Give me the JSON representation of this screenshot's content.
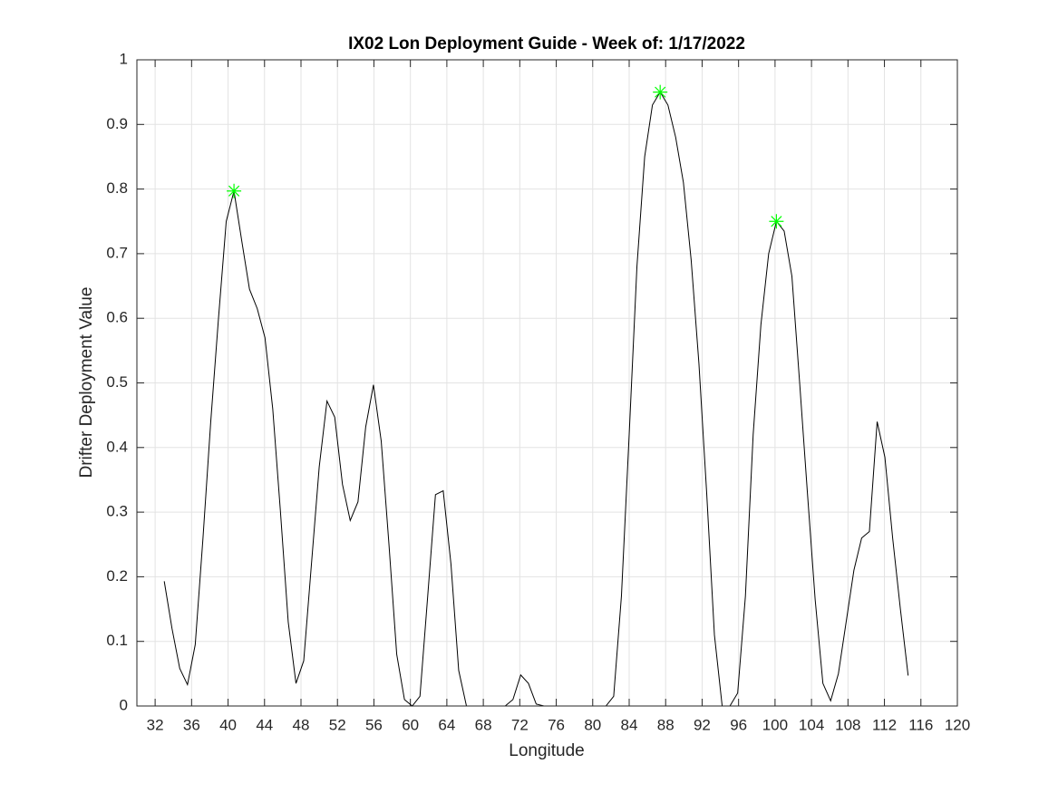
{
  "chart_data": {
    "type": "line",
    "title": "IX02 Lon Deployment Guide - Week of: 1/17/2022",
    "x_label": "Longitude",
    "y_label": "Drifter Deployment Value",
    "x": [
      33,
      33.85,
      34.7,
      35.55,
      36.4,
      37.25,
      38.1,
      38.95,
      39.8,
      40.65,
      41.5,
      42.35,
      43.2,
      44.05,
      44.9,
      45.75,
      46.6,
      47.45,
      48.3,
      49.15,
      50,
      50.85,
      51.7,
      52.55,
      53.4,
      54.25,
      55.1,
      55.95,
      56.8,
      57.65,
      58.5,
      59.35,
      60.2,
      61.05,
      61.9,
      62.75,
      63.6,
      64.45,
      65.3,
      66.15,
      67,
      67.85,
      68.7,
      69.55,
      70.4,
      71.25,
      72.1,
      72.95,
      73.8,
      74.65,
      75.5,
      76.35,
      77.2,
      78.05,
      78.9,
      79.75,
      80.6,
      81.45,
      82.3,
      83.15,
      84,
      84.85,
      85.7,
      86.55,
      87.4,
      88.25,
      89.1,
      89.95,
      90.8,
      91.65,
      92.5,
      93.35,
      94.2,
      95.05,
      95.9,
      96.75,
      97.6,
      98.45,
      99.3,
      100.15,
      101,
      101.85,
      102.7,
      103.55,
      104.4,
      105.25,
      106.1,
      106.95,
      107.8,
      108.65,
      109.5,
      110.35,
      111.2,
      112.05,
      112.9,
      113.75,
      114.6
    ],
    "values": [
      0.193,
      0.12,
      0.058,
      0.033,
      0.095,
      0.26,
      0.44,
      0.6,
      0.75,
      0.797,
      0.72,
      0.645,
      0.615,
      0.57,
      0.46,
      0.3,
      0.13,
      0.035,
      0.07,
      0.22,
      0.37,
      0.472,
      0.447,
      0.343,
      0.287,
      0.316,
      0.432,
      0.497,
      0.41,
      0.25,
      0.08,
      0.01,
      0,
      0.015,
      0.17,
      0.327,
      0.333,
      0.22,
      0.055,
      0,
      0,
      0,
      0,
      0,
      0,
      0.01,
      0.048,
      0.035,
      0.003,
      0,
      0,
      0,
      0,
      0,
      0,
      0,
      0,
      0,
      0.015,
      0.17,
      0.42,
      0.68,
      0.85,
      0.93,
      0.95,
      0.93,
      0.88,
      0.81,
      0.69,
      0.53,
      0.33,
      0.11,
      0,
      0,
      0.02,
      0.17,
      0.42,
      0.59,
      0.7,
      0.75,
      0.735,
      0.665,
      0.5,
      0.33,
      0.165,
      0.035,
      0.008,
      0.05,
      0.13,
      0.21,
      0.26,
      0.27,
      0.44,
      0.385,
      0.26,
      0.15,
      0.047
    ],
    "color": "#000000",
    "peaks": {
      "x": [
        40.65,
        87.4,
        100.15
      ],
      "values": [
        0.797,
        0.95,
        0.75
      ],
      "color": "#00ff00",
      "marker": "asterisk"
    },
    "xlim": [
      30,
      120
    ],
    "xticks": [
      32,
      36,
      40,
      44,
      48,
      52,
      56,
      60,
      64,
      68,
      72,
      76,
      80,
      84,
      88,
      92,
      96,
      100,
      104,
      108,
      112,
      116,
      120
    ],
    "ylim": [
      0,
      1
    ],
    "yticks": [
      0,
      0.1,
      0.2,
      0.3,
      0.4,
      0.5,
      0.6,
      0.7,
      0.8,
      0.9,
      1
    ],
    "grid": true
  }
}
